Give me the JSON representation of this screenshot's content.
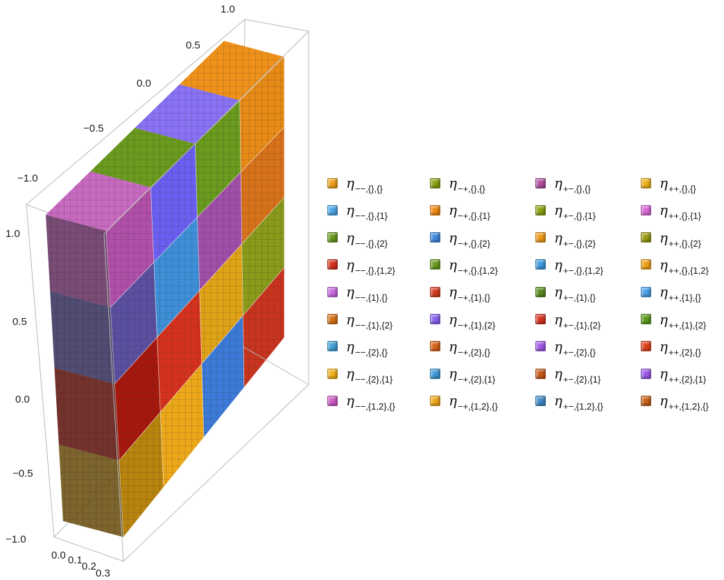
{
  "chart_data": {
    "type": "3d-bar",
    "axes": {
      "x_ticks": [
        "0.0",
        "0.1",
        "0.2",
        "0.3"
      ],
      "y_ticks": [
        "−1.0",
        "−0.5",
        "0.0",
        "0.5",
        "1.0"
      ],
      "z_ticks": [
        "−1.0",
        "−0.5",
        "0.0",
        "0.5",
        "1.0"
      ],
      "xlim": [
        0,
        0.3
      ],
      "ylim": [
        -1,
        1
      ],
      "zlim": [
        -1,
        1
      ]
    },
    "grid": {
      "rows": 4,
      "cols": 4,
      "front_face_colors_by_row": [
        [
          "#b04fa8",
          "#6a5ff0",
          "#6a9a1e",
          "#e88a16"
        ],
        [
          "#5a4fa0",
          "#3e8fd8",
          "#a04fa8",
          "#d8721a"
        ],
        [
          "#a6180e",
          "#d4321e",
          "#e0a216",
          "#8a9a1a"
        ],
        [
          "#b8840e",
          "#eda81a",
          "#3c7ad8",
          "#c8341e"
        ]
      ],
      "top_face_colors": [
        "#c86ac0",
        "#6a9a1e",
        "#8a72f5",
        "#f0921a"
      ]
    },
    "legend": [
      {
        "sub": "−−,{},{}",
        "color": "#f1a21a"
      },
      {
        "sub": "−−,{},{1}",
        "color": "#4aa8e8"
      },
      {
        "sub": "−−,{},{2}",
        "color": "#6a9a1e"
      },
      {
        "sub": "−−,{},{1,2}",
        "color": "#d8321e"
      },
      {
        "sub": "−−,{1},{}",
        "color": "#c86ae0"
      },
      {
        "sub": "−−,{1},{2}",
        "color": "#d8721a"
      },
      {
        "sub": "−−,{2},{}",
        "color": "#3ea0d8"
      },
      {
        "sub": "−−,{2},{1}",
        "color": "#f0b21a"
      },
      {
        "sub": "−−,{1,2},{}",
        "color": "#d05ac8"
      },
      {
        "sub": "−+,{},{}",
        "color": "#8aa012"
      },
      {
        "sub": "−+,{},{1}",
        "color": "#ef8a12"
      },
      {
        "sub": "−+,{},{2}",
        "color": "#3e8ae0"
      },
      {
        "sub": "−+,{},{1,2}",
        "color": "#6a9a1e"
      },
      {
        "sub": "−+,{1},{}",
        "color": "#d83a22"
      },
      {
        "sub": "−+,{1},{2}",
        "color": "#8a62f0"
      },
      {
        "sub": "−+,{2},{}",
        "color": "#d8621a"
      },
      {
        "sub": "−+,{2},{1}",
        "color": "#3e9ad8"
      },
      {
        "sub": "−+,{1,2},{}",
        "color": "#f0a81a"
      },
      {
        "sub": "+−,{},{}",
        "color": "#b04fa0"
      },
      {
        "sub": "+−,{},{1}",
        "color": "#8aa012"
      },
      {
        "sub": "+−,{},{2}",
        "color": "#f09a1a"
      },
      {
        "sub": "+−,{},{1,2}",
        "color": "#3e9ae0"
      },
      {
        "sub": "+−,{1},{}",
        "color": "#5a8a1e"
      },
      {
        "sub": "+−,{1},{2}",
        "color": "#d8321e"
      },
      {
        "sub": "+−,{2},{}",
        "color": "#a25ae8"
      },
      {
        "sub": "+−,{2},{1}",
        "color": "#c8581a"
      },
      {
        "sub": "+−,{1,2},{}",
        "color": "#3e8ac8"
      },
      {
        "sub": "++,{},{}",
        "color": "#f0b01a"
      },
      {
        "sub": "++,{},{1}",
        "color": "#d86ad8"
      },
      {
        "sub": "++,{},{2}",
        "color": "#9a9a12"
      },
      {
        "sub": "++,{},{1,2}",
        "color": "#f0a21a"
      },
      {
        "sub": "++,{1},{}",
        "color": "#4aa0e8"
      },
      {
        "sub": "++,{1},{2}",
        "color": "#5a9a1e"
      },
      {
        "sub": "++,{2},{}",
        "color": "#e0421e"
      },
      {
        "sub": "++,{2},{1}",
        "color": "#9a5ae8"
      },
      {
        "sub": "++,{1,2},{}",
        "color": "#c8621a"
      }
    ],
    "legend_symbol": "η"
  }
}
